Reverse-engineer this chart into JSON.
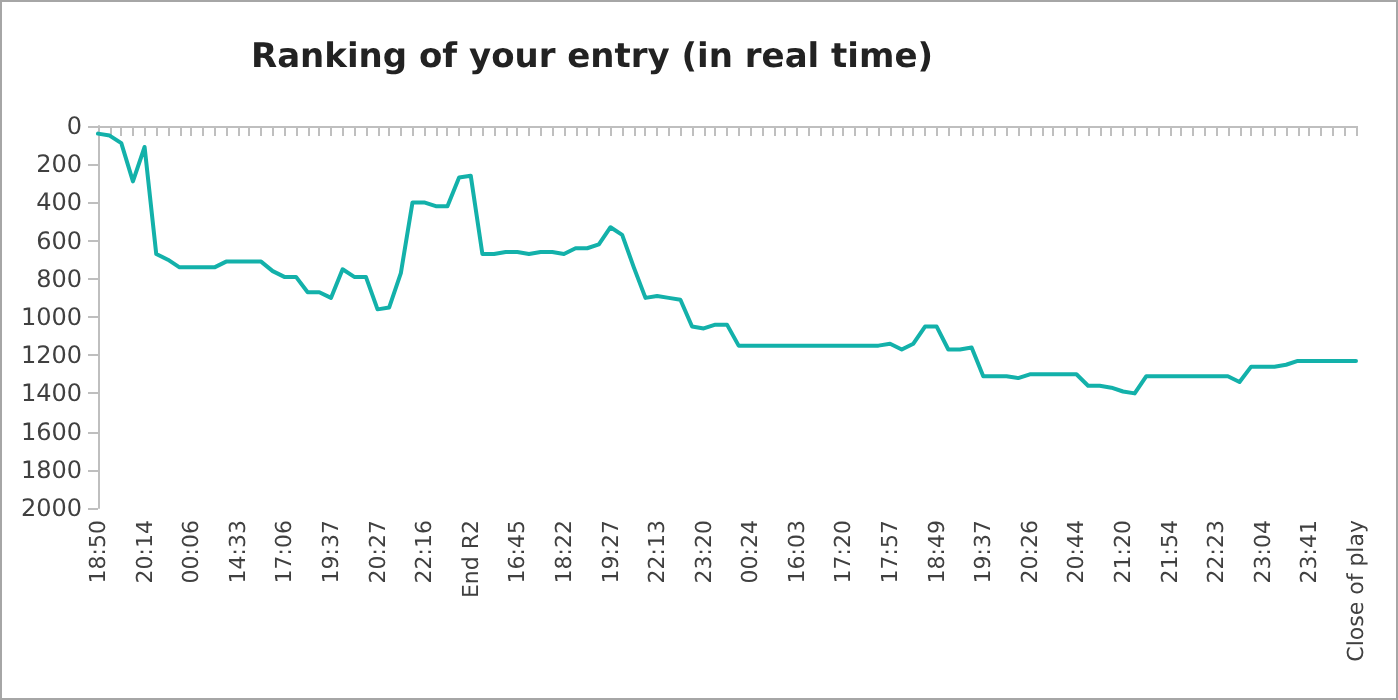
{
  "chart_data": {
    "type": "line",
    "title": "Ranking of your entry (in real time)",
    "categories": [
      "18:50",
      null,
      null,
      null,
      "20:14",
      null,
      null,
      null,
      "00:06",
      null,
      null,
      null,
      "14:33",
      null,
      null,
      null,
      "17:06",
      null,
      null,
      null,
      "19:37",
      null,
      null,
      null,
      "20:27",
      null,
      null,
      null,
      "22:16",
      null,
      null,
      null,
      "End R2",
      null,
      null,
      null,
      "16:45",
      null,
      null,
      null,
      "18:22",
      null,
      null,
      null,
      "19:27",
      null,
      null,
      null,
      "22:13",
      null,
      null,
      null,
      "23:20",
      null,
      null,
      null,
      "00:24",
      null,
      null,
      null,
      "16:03",
      null,
      null,
      null,
      "17:20",
      null,
      null,
      null,
      "17:57",
      null,
      null,
      null,
      "18:49",
      null,
      null,
      null,
      "19:37",
      null,
      null,
      null,
      "20:26",
      null,
      null,
      null,
      "20:44",
      null,
      null,
      null,
      "21:20",
      null,
      null,
      null,
      "21:54",
      null,
      null,
      null,
      "22:23",
      null,
      null,
      null,
      "23:04",
      null,
      null,
      null,
      "23:41",
      null,
      null,
      null,
      "Close of play"
    ],
    "series": [
      {
        "color": "#13b1aa",
        "values": [
          40,
          50,
          90,
          290,
          110,
          670,
          700,
          740,
          740,
          740,
          740,
          710,
          710,
          710,
          710,
          760,
          790,
          790,
          870,
          870,
          900,
          750,
          790,
          790,
          960,
          950,
          770,
          400,
          400,
          420,
          420,
          270,
          260,
          670,
          670,
          660,
          660,
          670,
          660,
          660,
          670,
          640,
          640,
          620,
          530,
          570,
          740,
          900,
          890,
          900,
          910,
          1050,
          1060,
          1040,
          1040,
          1150,
          1150,
          1150,
          1150,
          1150,
          1150,
          1150,
          1150,
          1150,
          1150,
          1150,
          1150,
          1150,
          1140,
          1170,
          1140,
          1050,
          1050,
          1170,
          1170,
          1160,
          1310,
          1310,
          1310,
          1320,
          1300,
          1300,
          1300,
          1300,
          1300,
          1360,
          1360,
          1370,
          1390,
          1400,
          1310,
          1310,
          1310,
          1310,
          1310,
          1310,
          1310,
          1310,
          1340,
          1260,
          1260,
          1260,
          1250,
          1230,
          1230,
          1230,
          1230,
          1230,
          1230
        ]
      }
    ],
    "ylim": [
      2000,
      0
    ],
    "yticks": [
      0,
      200,
      400,
      600,
      800,
      1000,
      1200,
      1400,
      1600,
      1800,
      2000
    ],
    "grid": false,
    "marker": "none",
    "line_style": "solid"
  }
}
